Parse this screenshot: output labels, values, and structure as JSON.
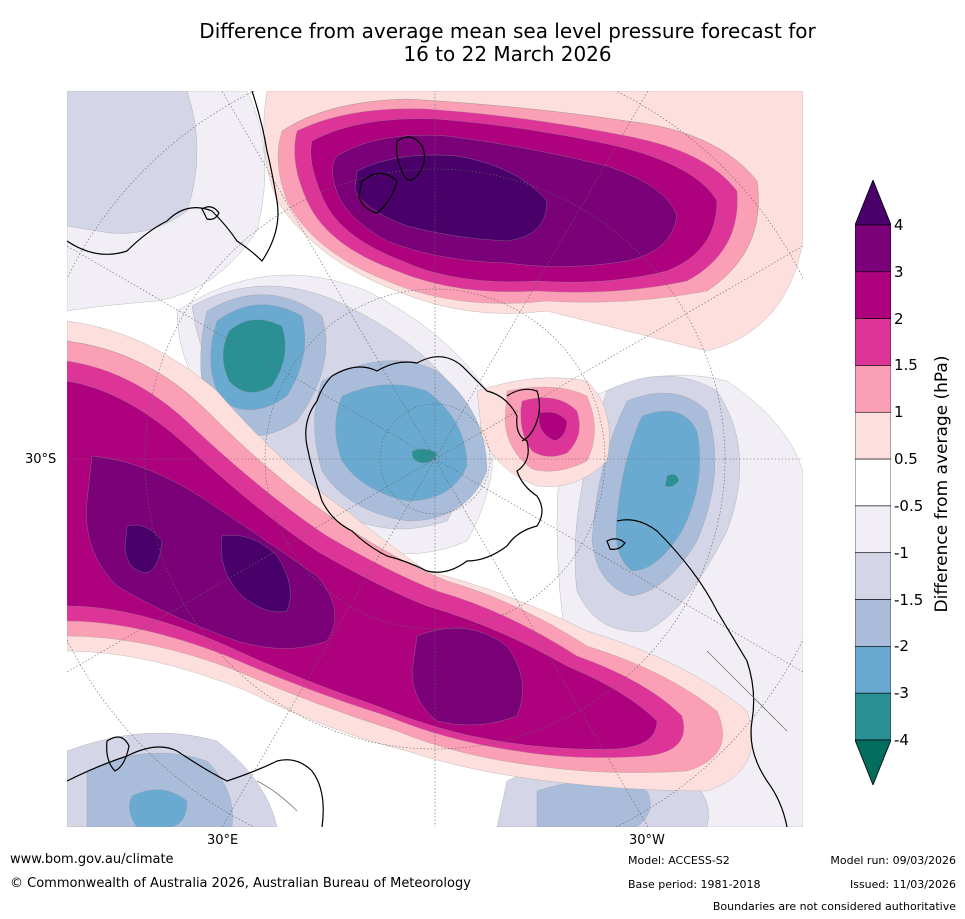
{
  "title": {
    "line1": "Difference from average mean sea level pressure forecast for",
    "line2": "16 to 22 March 2026"
  },
  "map": {
    "labels": {
      "left_lat": "30°S",
      "bottom_left": "30°E",
      "bottom_right": "30°W"
    },
    "colors": {
      "c_m2": "#2a9094",
      "c_m15": "#6aaad0",
      "c_m1": "#a9bcda",
      "c_m05": "#d4d5e7",
      "c_m0": "#f1eef5",
      "c_p0": "#fde0dd",
      "c_p1": "#fa9fb5",
      "c_p15": "#dd3497",
      "c_p2": "#ae017e",
      "c_p3": "#7a0177",
      "c_p4": "#49006a",
      "land_outline": "#000000",
      "grid": "#777777"
    }
  },
  "colorbar": {
    "title": "Difference from average (hPa)",
    "ticks": [
      "4",
      "3",
      "2",
      "1.5",
      "1",
      "0.5",
      "-0.5",
      "-1",
      "-1.5",
      "-2",
      "-3",
      "-4"
    ],
    "colors": [
      "#49006a",
      "#7a0177",
      "#ae017e",
      "#dd3497",
      "#fa9fb5",
      "#fde0dd",
      "#ffffff",
      "#f1eef5",
      "#d4d5e7",
      "#a9bcda",
      "#6aaad0",
      "#2a9094",
      "#006d5e"
    ]
  },
  "footer": {
    "website": "www.bom.gov.au/climate",
    "copyright": "© Commonwealth of Australia 2026, Australian Bureau of Meteorology",
    "model": "Model: ACCESS-S2",
    "base_period": "Base period: 1981-2018",
    "model_run": "Model run: 09/03/2026",
    "issued": "Issued: 11/03/2026",
    "disclaimer": "Boundaries are not considered authoritative"
  }
}
